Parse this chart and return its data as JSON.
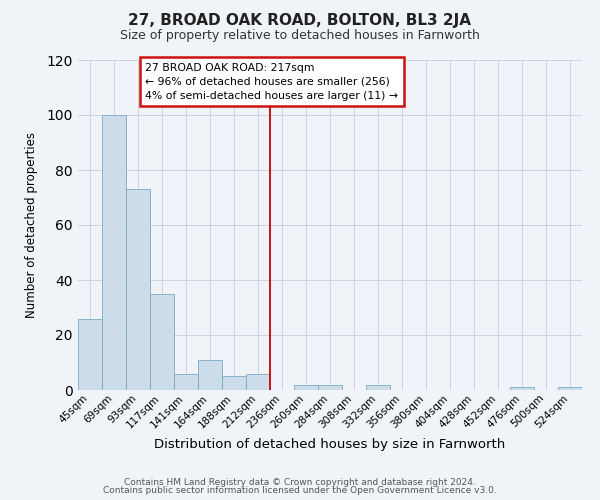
{
  "title": "27, BROAD OAK ROAD, BOLTON, BL3 2JA",
  "subtitle": "Size of property relative to detached houses in Farnworth",
  "xlabel": "Distribution of detached houses by size in Farnworth",
  "ylabel": "Number of detached properties",
  "bin_labels": [
    "45sqm",
    "69sqm",
    "93sqm",
    "117sqm",
    "141sqm",
    "164sqm",
    "188sqm",
    "212sqm",
    "236sqm",
    "260sqm",
    "284sqm",
    "308sqm",
    "332sqm",
    "356sqm",
    "380sqm",
    "404sqm",
    "428sqm",
    "452sqm",
    "476sqm",
    "500sqm",
    "524sqm"
  ],
  "bar_values": [
    26,
    100,
    73,
    35,
    6,
    11,
    5,
    6,
    0,
    2,
    2,
    0,
    2,
    0,
    0,
    0,
    0,
    0,
    1,
    0,
    1
  ],
  "bar_color": "#ccdce8",
  "bar_edge_color": "#7aaac8",
  "ylim": [
    0,
    120
  ],
  "yticks": [
    0,
    20,
    40,
    60,
    80,
    100,
    120
  ],
  "vline_bin": 7.5,
  "vline_color": "#cc1111",
  "annotation_title": "27 BROAD OAK ROAD: 217sqm",
  "annotation_line1": "← 96% of detached houses are smaller (256)",
  "annotation_line2": "4% of semi-detached houses are larger (11) →",
  "annotation_box_color": "#cc1111",
  "footer_line1": "Contains HM Land Registry data © Crown copyright and database right 2024.",
  "footer_line2": "Contains public sector information licensed under the Open Government Licence v3.0.",
  "background_color": "#f0f4f8",
  "grid_color": "#c8ccd8"
}
